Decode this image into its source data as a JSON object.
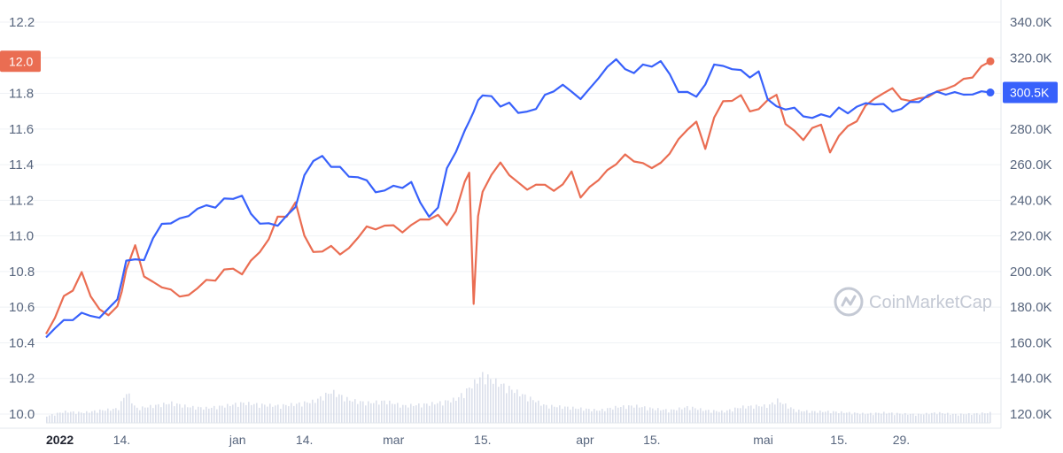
{
  "watermark": {
    "text": "CoinMarketCap",
    "icon": "coinmarketcap-logo-icon"
  },
  "colors": {
    "series_primary": "#ea6d52",
    "series_secondary": "#3861fb",
    "volume": "#cfd6e4",
    "grid": "#eff2f5",
    "tick": "#58667e"
  },
  "chart_data": {
    "type": "line",
    "title": "",
    "xlabel": "",
    "ylabel": "",
    "x_ticks": [
      "2022",
      "14.",
      "jan",
      "14.",
      "mar",
      "15.",
      "apr",
      "15.",
      "mai",
      "15.",
      "29."
    ],
    "x_range": [
      0,
      212
    ],
    "x_tick_positions": [
      0,
      17,
      43,
      58,
      78,
      98,
      121,
      136,
      161,
      178,
      192
    ],
    "y_left": {
      "range": [
        10.0,
        12.2
      ],
      "ticks": [
        "10.0",
        "10.2",
        "10.4",
        "10.6",
        "10.8",
        "11.0",
        "11.2",
        "11.4",
        "11.6",
        "11.8",
        "12.0",
        "12.2"
      ]
    },
    "y_right": {
      "range": [
        120000,
        340000
      ],
      "ticks": [
        "120.0K",
        "140.0K",
        "160.0K",
        "180.0K",
        "200.0K",
        "220.0K",
        "240.0K",
        "260.0K",
        "280.0K",
        "300.0K",
        "320.0K",
        "340.0K"
      ]
    },
    "current_left_label": "12.0",
    "current_right_label": "300.5K",
    "grid": true,
    "legend": "none",
    "series": [
      {
        "axis": "left",
        "color": "#ea6d52",
        "x": [
          0,
          2,
          4,
          6,
          8,
          10,
          12,
          14,
          16,
          17,
          18,
          20,
          22,
          24,
          26,
          28,
          30,
          32,
          34,
          36,
          38,
          40,
          42,
          44,
          46,
          48,
          50,
          52,
          54,
          56,
          58,
          60,
          62,
          64,
          66,
          68,
          70,
          72,
          74,
          76,
          78,
          80,
          82,
          84,
          86,
          88,
          90,
          92,
          94,
          95,
          96,
          97,
          98,
          100,
          102,
          104,
          106,
          108,
          110,
          112,
          114,
          116,
          118,
          120,
          122,
          124,
          126,
          128,
          130,
          132,
          134,
          136,
          138,
          140,
          142,
          144,
          146,
          148,
          150,
          152,
          154,
          156,
          158,
          160,
          162,
          164,
          166,
          168,
          170,
          172,
          174,
          176,
          178,
          180,
          182,
          184,
          186,
          188,
          190,
          192,
          194,
          196,
          198,
          200,
          202,
          204,
          206,
          208,
          210,
          212
        ],
        "values": [
          10.45,
          10.55,
          10.65,
          10.7,
          10.8,
          10.65,
          10.6,
          10.55,
          10.6,
          10.7,
          10.8,
          10.95,
          10.78,
          10.73,
          10.72,
          10.7,
          10.65,
          10.68,
          10.7,
          10.75,
          10.76,
          10.8,
          10.82,
          10.79,
          10.85,
          10.92,
          10.98,
          11.1,
          11.12,
          11.18,
          11.0,
          10.92,
          10.9,
          10.95,
          10.9,
          10.92,
          11.0,
          11.05,
          11.03,
          11.07,
          11.05,
          11.02,
          11.07,
          11.08,
          11.1,
          11.12,
          11.05,
          11.15,
          11.3,
          11.35,
          10.63,
          11.1,
          11.25,
          11.35,
          11.4,
          11.35,
          11.3,
          11.25,
          11.3,
          11.28,
          11.25,
          11.3,
          11.35,
          11.22,
          11.28,
          11.3,
          11.38,
          11.4,
          11.45,
          11.43,
          11.4,
          11.38,
          11.42,
          11.45,
          11.55,
          11.6,
          11.63,
          11.5,
          11.66,
          11.75,
          11.77,
          11.78,
          11.7,
          11.72,
          11.75,
          11.8,
          11.63,
          11.58,
          11.55,
          11.6,
          11.62,
          11.48,
          11.55,
          11.62,
          11.65,
          11.72,
          11.78,
          11.8,
          11.82,
          11.78,
          11.75,
          11.77,
          11.79,
          11.8,
          11.83,
          11.85,
          11.87,
          11.9,
          11.95,
          11.98
        ]
      },
      {
        "axis": "right",
        "color": "#3861fb",
        "x": [
          0,
          2,
          4,
          6,
          8,
          10,
          12,
          14,
          16,
          17,
          18,
          20,
          22,
          24,
          26,
          28,
          30,
          32,
          34,
          36,
          38,
          40,
          42,
          44,
          46,
          48,
          50,
          52,
          54,
          56,
          58,
          60,
          62,
          64,
          66,
          68,
          70,
          72,
          74,
          76,
          78,
          80,
          82,
          84,
          86,
          88,
          90,
          92,
          94,
          95,
          96,
          97,
          98,
          100,
          102,
          104,
          106,
          108,
          110,
          112,
          114,
          116,
          118,
          120,
          122,
          124,
          126,
          128,
          130,
          132,
          134,
          136,
          138,
          140,
          142,
          144,
          146,
          148,
          150,
          152,
          154,
          156,
          158,
          160,
          162,
          164,
          166,
          168,
          170,
          172,
          174,
          176,
          178,
          180,
          182,
          184,
          186,
          188,
          190,
          192,
          194,
          196,
          198,
          200,
          202,
          204,
          206,
          208,
          210,
          212
        ],
        "values": [
          163000,
          168000,
          172000,
          174000,
          176000,
          175000,
          175000,
          178000,
          185000,
          195000,
          205000,
          208000,
          206000,
          218000,
          228000,
          226000,
          230000,
          232000,
          234000,
          238000,
          236000,
          240000,
          242000,
          242000,
          232000,
          228000,
          226000,
          226000,
          232000,
          235000,
          255000,
          262000,
          264000,
          260000,
          258000,
          253000,
          254000,
          250000,
          245000,
          246000,
          247000,
          248000,
          250000,
          238000,
          232000,
          235000,
          258000,
          268000,
          278000,
          285000,
          290000,
          295000,
          300000,
          298000,
          292000,
          296000,
          288000,
          290000,
          292000,
          298000,
          302000,
          305000,
          300000,
          298000,
          302000,
          308000,
          316000,
          318000,
          314000,
          312000,
          315000,
          316000,
          318000,
          310000,
          302000,
          300000,
          298000,
          306000,
          315000,
          316000,
          314000,
          312000,
          310000,
          312000,
          296000,
          294000,
          290000,
          292000,
          288000,
          285000,
          289000,
          287000,
          291000,
          290000,
          292000,
          294000,
          295000,
          293000,
          290000,
          292000,
          294000,
          296000,
          299000,
          300000,
          300500,
          300000,
          299000,
          300500,
          300000,
          300500
        ]
      }
    ],
    "volume": {
      "color": "#cfd6e4",
      "x": [
        0,
        4,
        8,
        12,
        16,
        18,
        20,
        24,
        28,
        32,
        36,
        40,
        44,
        48,
        52,
        56,
        60,
        64,
        68,
        72,
        76,
        80,
        84,
        88,
        92,
        94,
        96,
        98,
        100,
        104,
        108,
        112,
        116,
        120,
        124,
        128,
        132,
        136,
        140,
        144,
        148,
        152,
        156,
        160,
        162,
        164,
        168,
        172,
        176,
        180,
        184,
        188,
        192,
        196,
        200,
        204,
        208,
        212
      ],
      "values": [
        0.12,
        0.2,
        0.18,
        0.22,
        0.25,
        0.55,
        0.25,
        0.3,
        0.35,
        0.28,
        0.26,
        0.3,
        0.35,
        0.32,
        0.3,
        0.33,
        0.38,
        0.55,
        0.4,
        0.35,
        0.38,
        0.3,
        0.32,
        0.35,
        0.42,
        0.55,
        0.7,
        0.85,
        0.75,
        0.6,
        0.45,
        0.3,
        0.28,
        0.25,
        0.22,
        0.28,
        0.3,
        0.25,
        0.22,
        0.28,
        0.22,
        0.2,
        0.28,
        0.3,
        0.3,
        0.4,
        0.22,
        0.2,
        0.2,
        0.18,
        0.16,
        0.18,
        0.16,
        0.15,
        0.18,
        0.15,
        0.16,
        0.18
      ]
    }
  }
}
